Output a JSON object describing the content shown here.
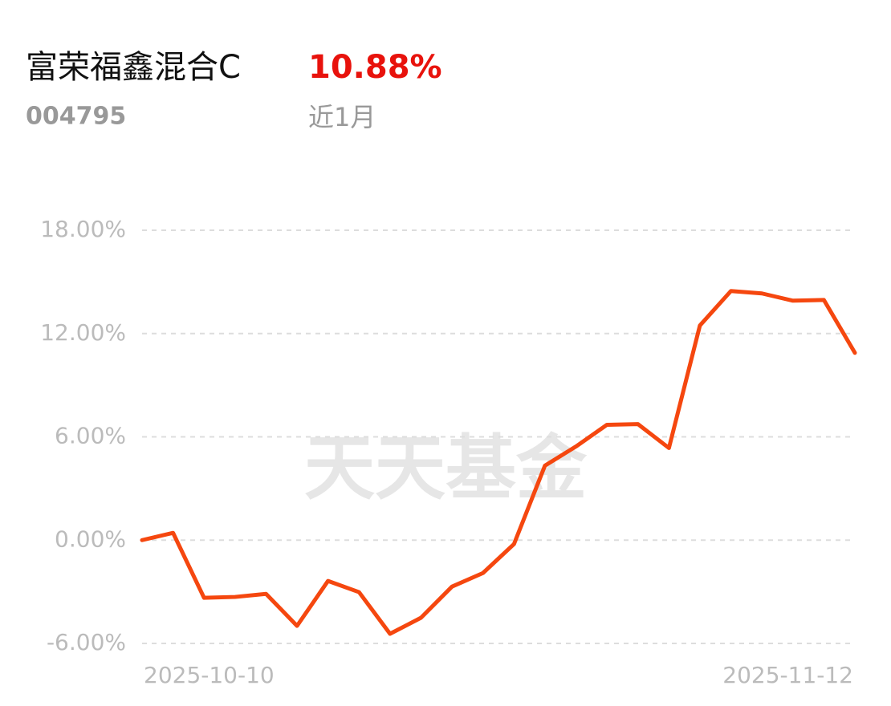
{
  "header": {
    "title": "富荣福鑫混合C",
    "return": "10.88%",
    "code": "004795",
    "period": "近1月"
  },
  "chart_data": {
    "type": "line",
    "watermark": "天天基金",
    "categories": [
      "2025-10-10",
      null,
      null,
      null,
      null,
      null,
      null,
      null,
      null,
      null,
      null,
      null,
      null,
      null,
      null,
      null,
      null,
      null,
      null,
      null,
      null,
      null,
      null,
      "2025-11-12"
    ],
    "series": [
      {
        "color": "#f5470f",
        "values": [
          0.0,
          0.42,
          -3.35,
          -3.3,
          -3.12,
          -4.98,
          -2.37,
          -3.02,
          -5.44,
          -4.51,
          -2.7,
          -1.91,
          -0.23,
          4.33,
          5.44,
          6.7,
          6.74,
          5.35,
          12.47,
          14.47,
          14.33,
          13.91,
          13.95,
          10.88
        ]
      }
    ],
    "ylim": [
      -6,
      18
    ],
    "yticks": [
      {
        "value": -6,
        "label": "-6.00%"
      },
      {
        "value": 0,
        "label": "0.00%"
      },
      {
        "value": 6,
        "label": "6.00%"
      },
      {
        "value": 12,
        "label": "12.00%"
      },
      {
        "value": 18,
        "label": "18.00%"
      }
    ],
    "grid": true
  }
}
